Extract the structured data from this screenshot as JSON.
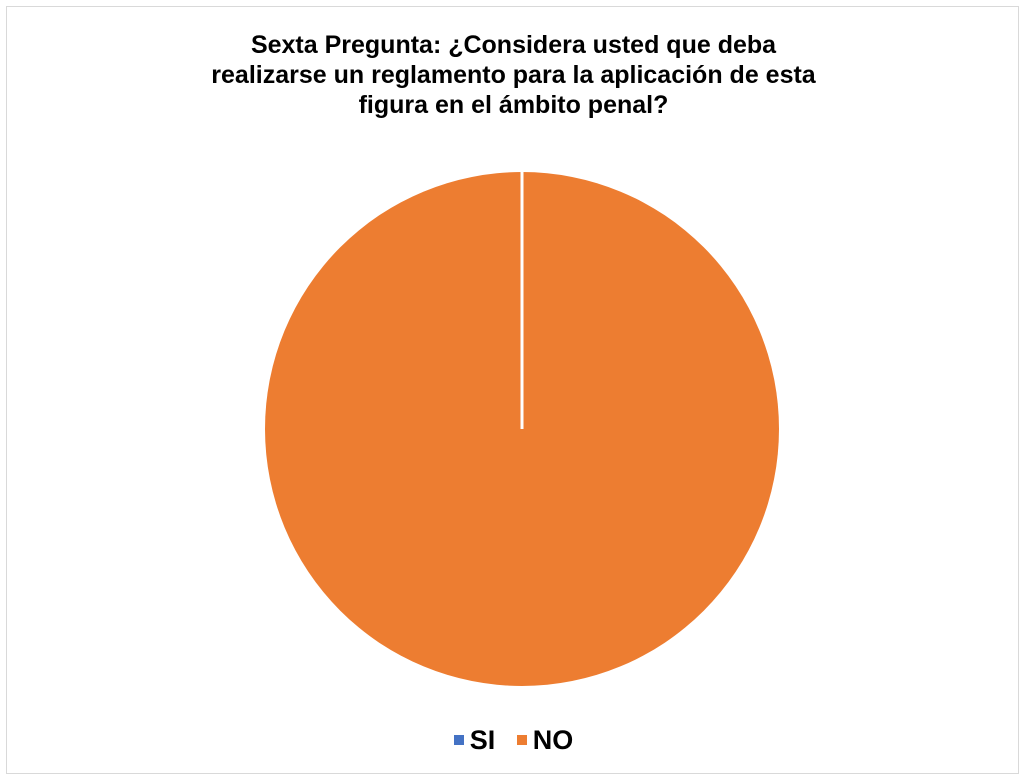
{
  "chart_data": {
    "type": "pie",
    "title": [
      "Sexta Pregunta: ¿Considera usted que deba",
      "realizarse un reglamento para la aplicación de esta",
      "figura en el ámbito penal?"
    ],
    "categories": [
      "SI",
      "NO"
    ],
    "values": [
      0,
      100
    ],
    "colors": [
      "#4472c4",
      "#ed7d31"
    ],
    "legend_position": "bottom"
  }
}
